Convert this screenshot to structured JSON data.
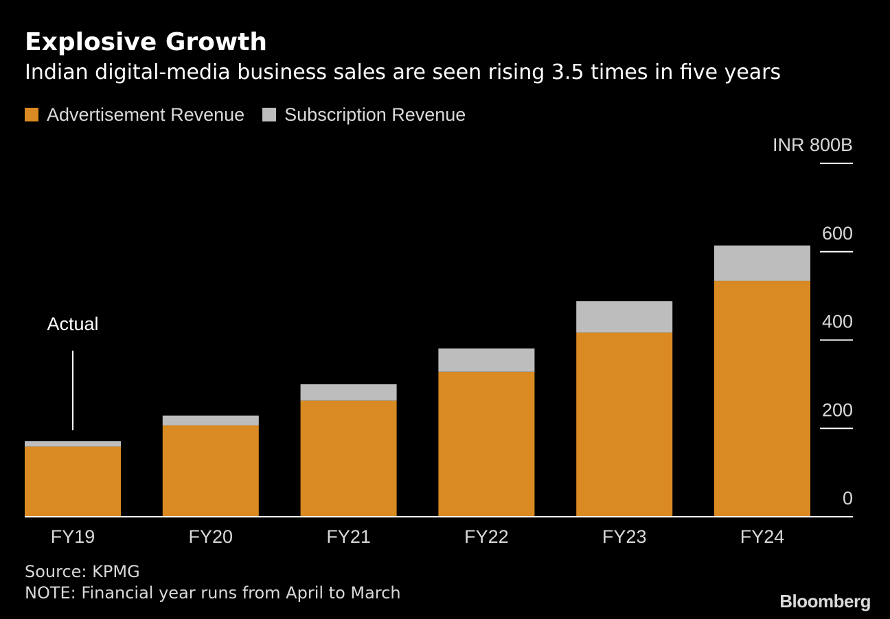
{
  "colors": {
    "background": "#000000",
    "advertisement": "#d98a22",
    "subscription": "#bdbdbd",
    "axis": "#ffffff",
    "text": "#d9d9d9"
  },
  "chart_data": {
    "type": "bar",
    "stacked": true,
    "title": "Explosive Growth",
    "subtitle": "Indian digital-media business sales are seen rising 3.5 times in five years",
    "categories": [
      "FY19",
      "FY20",
      "FY21",
      "FY22",
      "FY23",
      "FY24"
    ],
    "series": [
      {
        "name": "Advertisement Revenue",
        "color": "#d98a22",
        "values": [
          159,
          207,
          263,
          328,
          417,
          534
        ]
      },
      {
        "name": "Subscription Revenue",
        "color": "#bdbdbd",
        "values": [
          12,
          22,
          37,
          53,
          71,
          80
        ]
      }
    ],
    "y_axis": {
      "min": 0,
      "max": 800,
      "ticks": [
        0,
        200,
        400,
        600,
        800
      ],
      "tick_labels": [
        "0",
        "200",
        "400",
        "600",
        "INR 800B"
      ],
      "position": "right"
    },
    "grid": false,
    "legend": "top-left",
    "annotations": [
      {
        "text": "Actual",
        "category": "FY19"
      }
    ]
  },
  "footer": {
    "source": "Source: KPMG",
    "note": "NOTE: Financial year runs from April to March"
  },
  "brand": "Bloomberg"
}
